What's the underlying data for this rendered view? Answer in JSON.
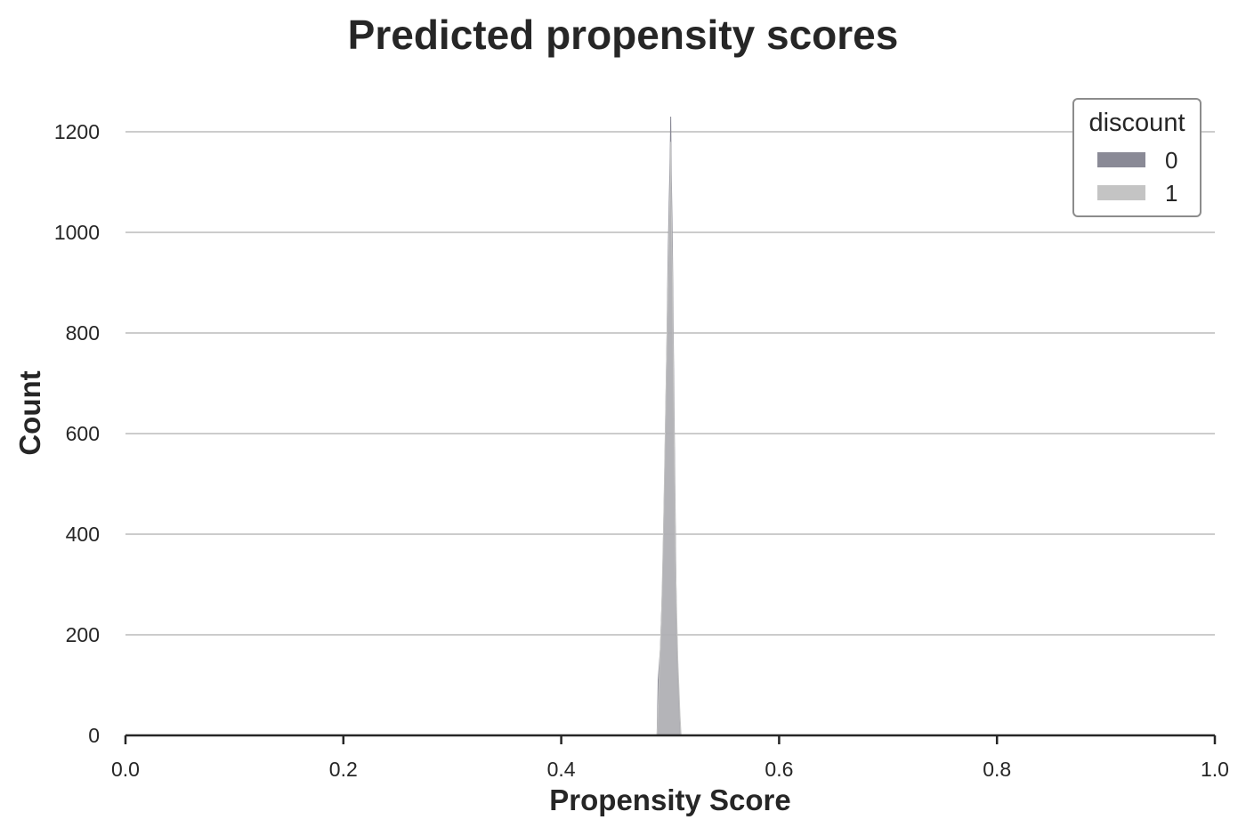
{
  "chart_data": {
    "type": "histogram",
    "title": "Predicted propensity scores",
    "xlabel": "Propensity Score",
    "ylabel": "Count",
    "xlim": [
      0.0,
      1.0
    ],
    "ylim": [
      0,
      1230
    ],
    "xticks": [
      "0.0",
      "0.2",
      "0.4",
      "0.6",
      "0.8",
      "1.0"
    ],
    "yticks": [
      "0",
      "200",
      "400",
      "600",
      "800",
      "1000",
      "1200"
    ],
    "grid": "horizontal",
    "legend": {
      "title": "discount",
      "placement": "top-right",
      "entries": [
        "0",
        "1"
      ]
    },
    "series": [
      {
        "name": "0",
        "color": "#8a8a96",
        "points": [
          [
            0.488,
            0
          ],
          [
            0.489,
            110
          ],
          [
            0.491,
            170
          ],
          [
            0.493,
            300
          ],
          [
            0.495,
            520
          ],
          [
            0.497,
            780
          ],
          [
            0.498,
            940
          ],
          [
            0.499,
            1050
          ],
          [
            0.5,
            1150
          ],
          [
            0.5005,
            1230
          ],
          [
            0.501,
            1120
          ],
          [
            0.502,
            980
          ],
          [
            0.503,
            760
          ],
          [
            0.504,
            560
          ],
          [
            0.505,
            360
          ],
          [
            0.506,
            180
          ],
          [
            0.508,
            60
          ],
          [
            0.509,
            0
          ]
        ]
      },
      {
        "name": "1",
        "color": "#c4c4c4",
        "points": [
          [
            0.488,
            0
          ],
          [
            0.49,
            120
          ],
          [
            0.492,
            230
          ],
          [
            0.494,
            420
          ],
          [
            0.496,
            660
          ],
          [
            0.498,
            900
          ],
          [
            0.499,
            1000
          ],
          [
            0.5,
            1100
          ],
          [
            0.5005,
            1180
          ],
          [
            0.501,
            1060
          ],
          [
            0.502,
            920
          ],
          [
            0.503,
            700
          ],
          [
            0.504,
            520
          ],
          [
            0.505,
            330
          ],
          [
            0.507,
            150
          ],
          [
            0.509,
            40
          ],
          [
            0.51,
            0
          ]
        ]
      }
    ]
  }
}
